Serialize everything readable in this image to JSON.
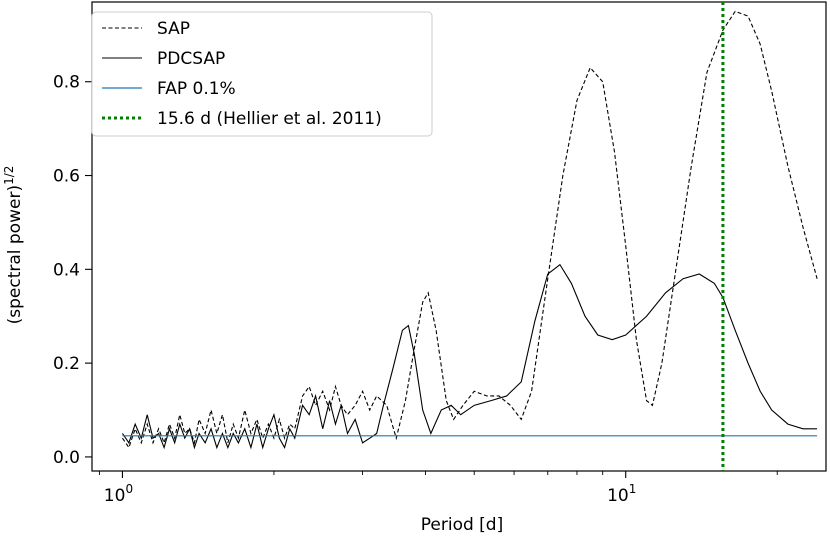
{
  "chart_data": {
    "type": "line",
    "xscale": "log",
    "xlim": [
      0.87,
      25
    ],
    "ylim": [
      -0.03,
      0.97
    ],
    "xlabel": "Period [d]",
    "ylabel_base": "(spectral power)",
    "ylabel_sup": "1/2",
    "grid": false,
    "legend_position": "top-left",
    "x_ticks": [
      {
        "value": 1,
        "base": "10",
        "exp": "0"
      },
      {
        "value": 10,
        "base": "10",
        "exp": "1"
      }
    ],
    "y_ticks": [
      {
        "value": 0.0,
        "label": "0.0"
      },
      {
        "value": 0.2,
        "label": "0.2"
      },
      {
        "value": 0.4,
        "label": "0.4"
      },
      {
        "value": 0.6,
        "label": "0.6"
      },
      {
        "value": 0.8,
        "label": "0.8"
      }
    ],
    "series": [
      {
        "name": "SAP",
        "style": "dashed",
        "color": "#000000",
        "points": [
          [
            1.0,
            0.04
          ],
          [
            1.03,
            0.02
          ],
          [
            1.06,
            0.06
          ],
          [
            1.09,
            0.03
          ],
          [
            1.12,
            0.07
          ],
          [
            1.15,
            0.03
          ],
          [
            1.18,
            0.06
          ],
          [
            1.21,
            0.03
          ],
          [
            1.24,
            0.07
          ],
          [
            1.27,
            0.04
          ],
          [
            1.3,
            0.09
          ],
          [
            1.33,
            0.05
          ],
          [
            1.36,
            0.06
          ],
          [
            1.39,
            0.03
          ],
          [
            1.42,
            0.08
          ],
          [
            1.46,
            0.05
          ],
          [
            1.5,
            0.1
          ],
          [
            1.54,
            0.05
          ],
          [
            1.58,
            0.09
          ],
          [
            1.62,
            0.03
          ],
          [
            1.66,
            0.07
          ],
          [
            1.7,
            0.04
          ],
          [
            1.75,
            0.1
          ],
          [
            1.8,
            0.05
          ],
          [
            1.85,
            0.08
          ],
          [
            1.9,
            0.04
          ],
          [
            1.95,
            0.07
          ],
          [
            2.0,
            0.04
          ],
          [
            2.05,
            0.08
          ],
          [
            2.1,
            0.04
          ],
          [
            2.15,
            0.07
          ],
          [
            2.2,
            0.06
          ],
          [
            2.28,
            0.13
          ],
          [
            2.35,
            0.15
          ],
          [
            2.42,
            0.11
          ],
          [
            2.5,
            0.14
          ],
          [
            2.58,
            0.1
          ],
          [
            2.65,
            0.15
          ],
          [
            2.72,
            0.11
          ],
          [
            2.8,
            0.09
          ],
          [
            2.9,
            0.11
          ],
          [
            3.0,
            0.14
          ],
          [
            3.1,
            0.1
          ],
          [
            3.2,
            0.13
          ],
          [
            3.35,
            0.11
          ],
          [
            3.5,
            0.04
          ],
          [
            3.65,
            0.12
          ],
          [
            3.8,
            0.23
          ],
          [
            3.95,
            0.33
          ],
          [
            4.05,
            0.35
          ],
          [
            4.2,
            0.27
          ],
          [
            4.4,
            0.12
          ],
          [
            4.55,
            0.08
          ],
          [
            4.75,
            0.11
          ],
          [
            5.0,
            0.14
          ],
          [
            5.3,
            0.13
          ],
          [
            5.6,
            0.13
          ],
          [
            5.9,
            0.11
          ],
          [
            6.2,
            0.08
          ],
          [
            6.5,
            0.14
          ],
          [
            7.0,
            0.38
          ],
          [
            7.5,
            0.6
          ],
          [
            8.0,
            0.76
          ],
          [
            8.5,
            0.83
          ],
          [
            9.0,
            0.8
          ],
          [
            9.5,
            0.65
          ],
          [
            10.0,
            0.45
          ],
          [
            10.5,
            0.25
          ],
          [
            11.0,
            0.12
          ],
          [
            11.3,
            0.11
          ],
          [
            11.8,
            0.2
          ],
          [
            12.5,
            0.38
          ],
          [
            13.5,
            0.62
          ],
          [
            14.5,
            0.82
          ],
          [
            15.6,
            0.91
          ],
          [
            16.5,
            0.95
          ],
          [
            17.5,
            0.94
          ],
          [
            18.5,
            0.88
          ],
          [
            19.5,
            0.78
          ],
          [
            21.0,
            0.62
          ],
          [
            22.5,
            0.49
          ],
          [
            24.0,
            0.38
          ]
        ]
      },
      {
        "name": "PDCSAP",
        "style": "solid",
        "color": "#000000",
        "points": [
          [
            1.0,
            0.05
          ],
          [
            1.03,
            0.03
          ],
          [
            1.06,
            0.07
          ],
          [
            1.09,
            0.04
          ],
          [
            1.12,
            0.09
          ],
          [
            1.15,
            0.04
          ],
          [
            1.18,
            0.05
          ],
          [
            1.21,
            0.02
          ],
          [
            1.24,
            0.06
          ],
          [
            1.27,
            0.03
          ],
          [
            1.3,
            0.07
          ],
          [
            1.33,
            0.04
          ],
          [
            1.36,
            0.06
          ],
          [
            1.39,
            0.02
          ],
          [
            1.42,
            0.05
          ],
          [
            1.46,
            0.03
          ],
          [
            1.5,
            0.06
          ],
          [
            1.54,
            0.02
          ],
          [
            1.58,
            0.05
          ],
          [
            1.62,
            0.02
          ],
          [
            1.66,
            0.05
          ],
          [
            1.7,
            0.03
          ],
          [
            1.75,
            0.06
          ],
          [
            1.8,
            0.02
          ],
          [
            1.85,
            0.07
          ],
          [
            1.9,
            0.02
          ],
          [
            1.95,
            0.06
          ],
          [
            2.0,
            0.09
          ],
          [
            2.05,
            0.04
          ],
          [
            2.1,
            0.02
          ],
          [
            2.15,
            0.06
          ],
          [
            2.2,
            0.04
          ],
          [
            2.28,
            0.11
          ],
          [
            2.35,
            0.09
          ],
          [
            2.42,
            0.13
          ],
          [
            2.5,
            0.06
          ],
          [
            2.58,
            0.12
          ],
          [
            2.65,
            0.07
          ],
          [
            2.72,
            0.11
          ],
          [
            2.8,
            0.05
          ],
          [
            2.9,
            0.08
          ],
          [
            3.0,
            0.03
          ],
          [
            3.1,
            0.04
          ],
          [
            3.2,
            0.05
          ],
          [
            3.3,
            0.11
          ],
          [
            3.45,
            0.19
          ],
          [
            3.6,
            0.27
          ],
          [
            3.7,
            0.28
          ],
          [
            3.8,
            0.22
          ],
          [
            3.95,
            0.1
          ],
          [
            4.1,
            0.05
          ],
          [
            4.3,
            0.1
          ],
          [
            4.5,
            0.11
          ],
          [
            4.7,
            0.09
          ],
          [
            5.0,
            0.11
          ],
          [
            5.4,
            0.12
          ],
          [
            5.8,
            0.13
          ],
          [
            6.2,
            0.16
          ],
          [
            6.6,
            0.29
          ],
          [
            7.0,
            0.39
          ],
          [
            7.4,
            0.41
          ],
          [
            7.8,
            0.37
          ],
          [
            8.3,
            0.3
          ],
          [
            8.8,
            0.26
          ],
          [
            9.4,
            0.25
          ],
          [
            10.0,
            0.26
          ],
          [
            11.0,
            0.3
          ],
          [
            12.0,
            0.35
          ],
          [
            13.0,
            0.38
          ],
          [
            14.0,
            0.39
          ],
          [
            15.0,
            0.37
          ],
          [
            15.6,
            0.34
          ],
          [
            16.5,
            0.27
          ],
          [
            17.5,
            0.2
          ],
          [
            18.5,
            0.14
          ],
          [
            19.5,
            0.1
          ],
          [
            21.0,
            0.07
          ],
          [
            22.5,
            0.06
          ],
          [
            24.0,
            0.06
          ]
        ]
      },
      {
        "name": "FAP 0.1%",
        "style": "solid",
        "color": "#1f77b4",
        "points": [
          [
            1.0,
            0.045
          ],
          [
            24.0,
            0.045
          ]
        ]
      }
    ],
    "vline": {
      "name": "15.6 d (Hellier et al. 2011)",
      "x": 15.6,
      "style": "dotted",
      "color": "#008000"
    }
  }
}
